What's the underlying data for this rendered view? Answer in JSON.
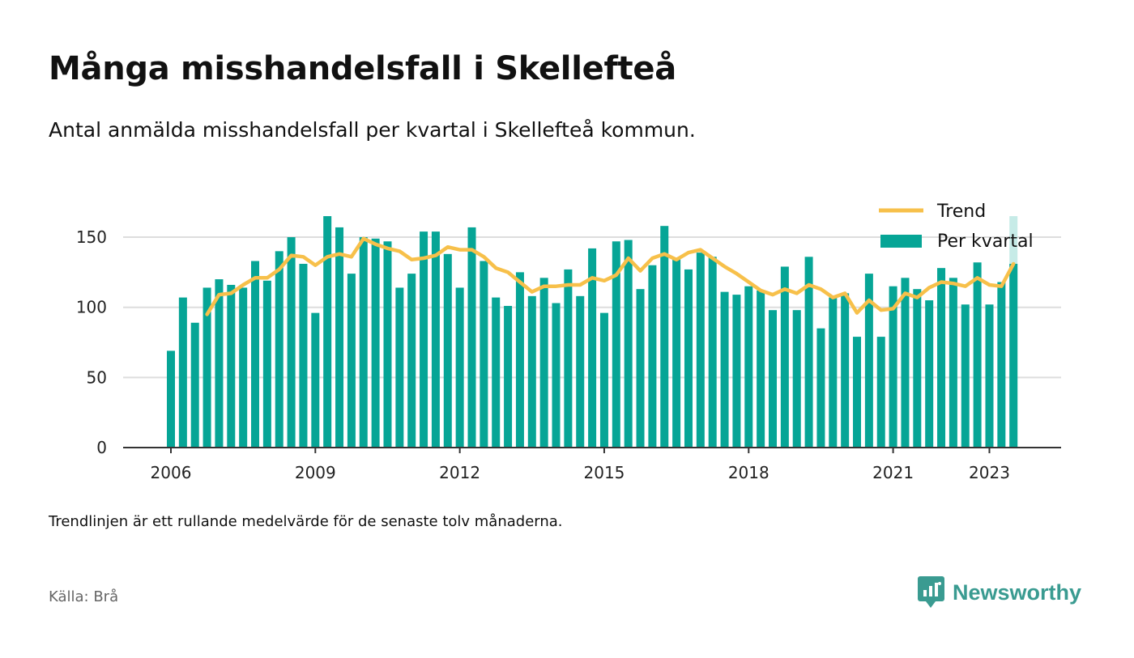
{
  "title": "Många misshandelsfall i Skellefteå",
  "subtitle": "Antal anmälda misshandelsfall per kvartal i Skellefteå kommun.",
  "note": "Trendlinjen är ett rullande medelvärde för de senaste tolv månaderna.",
  "source": "Källa: Brå",
  "brand": {
    "name": "Newsworthy",
    "icon": "newsworthy-logo-icon"
  },
  "colors": {
    "bar": "#06a596",
    "bar_partial": "#c6ebe7",
    "trend": "#f7c04a",
    "grid": "#dddddd",
    "axis": "#333333"
  },
  "chart_data": {
    "type": "bar",
    "x_start": "2006Q1",
    "x_ticks": [
      "2006",
      "2009",
      "2012",
      "2015",
      "2018",
      "2021",
      "2023"
    ],
    "x_tick_years": [
      2006,
      2009,
      2012,
      2015,
      2018,
      2021,
      2023
    ],
    "y_ticks": [
      "0",
      "50",
      "100",
      "150"
    ],
    "ylim": [
      0,
      170
    ],
    "legend": {
      "position": "top-right",
      "trend_label": "Trend",
      "bar_label": "Per kvartal"
    },
    "series": [
      {
        "name": "Per kvartal",
        "type": "bar",
        "values": [
          69,
          107,
          89,
          114,
          120,
          116,
          114,
          133,
          119,
          140,
          150,
          131,
          96,
          165,
          157,
          124,
          150,
          149,
          147,
          114,
          124,
          154,
          154,
          138,
          114,
          157,
          133,
          107,
          101,
          125,
          108,
          121,
          103,
          127,
          108,
          142,
          96,
          147,
          148,
          113,
          130,
          158,
          135,
          127,
          139,
          136,
          111,
          109,
          115,
          112,
          98,
          129,
          98,
          136,
          85,
          107,
          110,
          79,
          124,
          79,
          115,
          121,
          113,
          105,
          128,
          121,
          102,
          132,
          102,
          118,
          165
        ],
        "partial_last": true
      },
      {
        "name": "Trend",
        "type": "line",
        "start_index": 3,
        "values": [
          95,
          109,
          110,
          116,
          121,
          121,
          127,
          137,
          136,
          130,
          136,
          138,
          136,
          149,
          145,
          142,
          140,
          134,
          135,
          137,
          143,
          141,
          141,
          136,
          128,
          125,
          118,
          111,
          115,
          115,
          116,
          116,
          121,
          119,
          123,
          135,
          126,
          135,
          138,
          134,
          139,
          141,
          135,
          129,
          124,
          118,
          112,
          109,
          113,
          110,
          116,
          113,
          107,
          110,
          96,
          105,
          98,
          99,
          110,
          107,
          114,
          118,
          117,
          115,
          121,
          116,
          115,
          131
        ]
      }
    ]
  }
}
